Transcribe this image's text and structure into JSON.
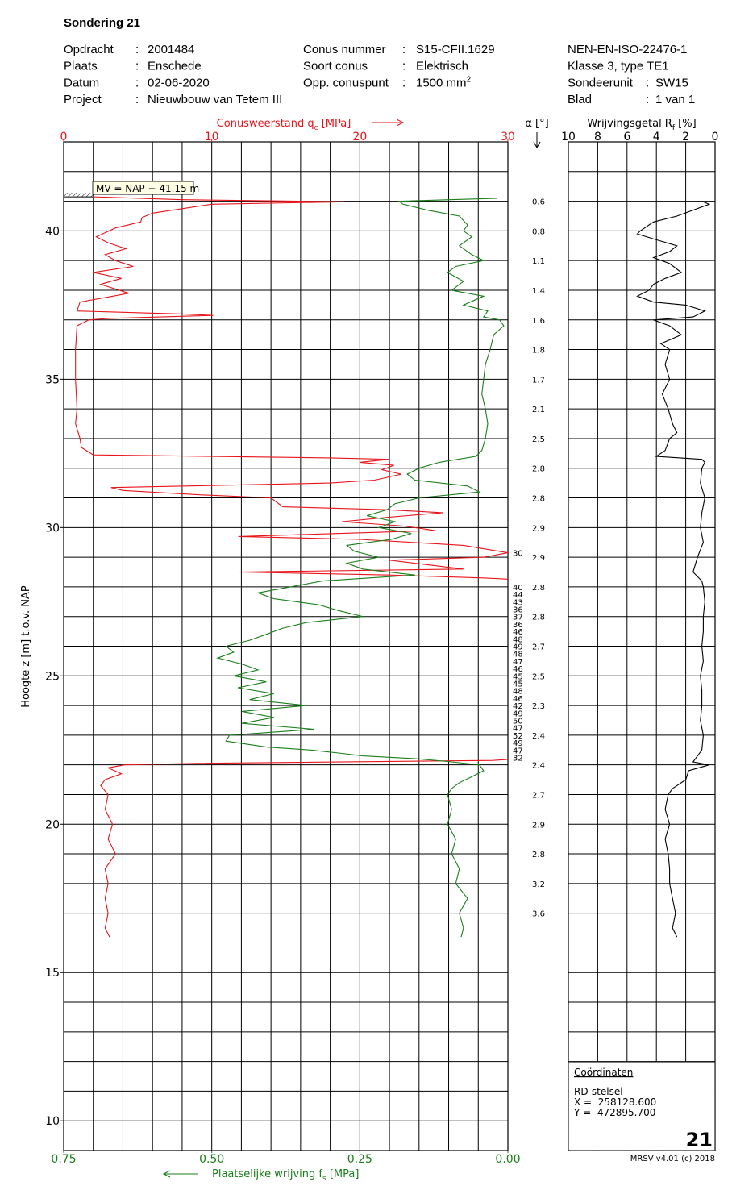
{
  "header": {
    "title": "Sondering 21",
    "separator": ":",
    "job": [
      {
        "label": "Opdracht",
        "value": "2001484"
      },
      {
        "label": "Plaats",
        "value": "Enschede"
      },
      {
        "label": "Datum",
        "value": "02-06-2020"
      },
      {
        "label": "Project",
        "value": "Nieuwbouw van Tetem III"
      }
    ],
    "cone": [
      {
        "label": "Conus nummer",
        "value": "S15-CFII.1629"
      },
      {
        "label": "Soort conus",
        "value": "Elektrisch"
      },
      {
        "label": "Opp. conuspunt",
        "value": "1500 mm",
        "sup": "2"
      }
    ],
    "standard": [
      "NEN-EN-ISO-22476-1",
      "Klasse 3, type TE1"
    ],
    "unit": [
      {
        "label": "Sondeerunit",
        "value": "SW15"
      },
      {
        "label": "Blad",
        "value": "1 van 1"
      }
    ]
  },
  "chart_data": [
    {
      "type": "line",
      "ylabel": "Hoogte z [m] t.o.v. NAP",
      "ylim": [
        9,
        43
      ],
      "yticks": [
        10,
        15,
        20,
        25,
        30,
        35,
        40
      ],
      "ygrid": [
        10,
        11,
        12,
        13,
        14,
        15,
        16,
        17,
        18,
        19,
        20,
        21,
        22,
        23,
        24,
        25,
        26,
        27,
        28,
        29,
        30,
        31,
        32,
        33,
        34,
        35,
        36,
        37,
        38,
        39,
        40,
        41,
        42
      ],
      "xlabel": {
        "text": "Conusweerstand q",
        "sub": "c",
        "unit": " [MPa]"
      },
      "xlim": [
        0,
        30
      ],
      "xticks": [
        0,
        10,
        20,
        30
      ],
      "xgrid": [
        2,
        4,
        6,
        8,
        10,
        12,
        14,
        16,
        18,
        20,
        22,
        24,
        26,
        28
      ],
      "x2label": {
        "text": "Plaatselijke wrijving f",
        "sub": "s",
        "unit": " [MPa]"
      },
      "x2lim": [
        0.75,
        0
      ],
      "x2ticks": [
        {
          "value": 0.75,
          "label": "0.75"
        },
        {
          "value": 0.5,
          "label": "0.50"
        },
        {
          "value": 0.25,
          "label": "0.25"
        },
        {
          "value": 0,
          "label": "0.00"
        }
      ],
      "surface": {
        "depth": 41.15,
        "label": "MV = NAP + 41.15 m"
      },
      "inclination": {
        "label": "α [°]",
        "depth": [
          41,
          40,
          39,
          38,
          37,
          36,
          35,
          34,
          33,
          32,
          31,
          30,
          29,
          28,
          27,
          26,
          25,
          24,
          23,
          22,
          21,
          20,
          19,
          18,
          17
        ],
        "values": [
          0.6,
          0.8,
          1.1,
          1.4,
          1.6,
          1.8,
          1.7,
          2.1,
          2.5,
          2.8,
          2.8,
          2.9,
          2.9,
          2.8,
          2.8,
          2.7,
          2.5,
          2.3,
          2.4,
          2.4,
          2.7,
          2.9,
          2.8,
          3.2,
          3.6
        ]
      },
      "series": [
        {
          "color": "#e8141b",
          "axis": "x",
          "depth": [
            41.15,
            41.05,
            40.98,
            40.9,
            40.6,
            40.45,
            40.3,
            40.1,
            39.8,
            39.6,
            39.4,
            39.2,
            39.0,
            38.8,
            38.6,
            38.4,
            38.2,
            37.9,
            37.6,
            37.3,
            37.2,
            37.15,
            37.05,
            37.0,
            36.8,
            36.0,
            35.0,
            34.0,
            33.5,
            33.0,
            32.7,
            32.45,
            32.35,
            32.3,
            32.2,
            32.1,
            31.95,
            31.8,
            31.6,
            31.5,
            31.35,
            31.25,
            31.1,
            31.0,
            30.7,
            30.6,
            30.5,
            30.35,
            30.2,
            30.05,
            29.9,
            29.7,
            29.6,
            29.4,
            29.15,
            29.0,
            28.9,
            28.75,
            28.6,
            28.5,
            28.4,
            28.3,
            28.0,
            27.75,
            27.5,
            27.25,
            27.0,
            26.75,
            26.5,
            26.25,
            26.0,
            25.75,
            25.5,
            25.25,
            25.0,
            24.75,
            24.5,
            24.25,
            24.0,
            23.75,
            23.5,
            23.25,
            23.0,
            22.75,
            22.5,
            22.25,
            22.15,
            22.05,
            22.0,
            21.9,
            21.7,
            21.5,
            21.3,
            21.0,
            20.5,
            20.0,
            19.5,
            19.0,
            18.5,
            18.0,
            17.5,
            17.0,
            16.5,
            16.2
          ],
          "values": [
            2.0,
            8.0,
            19.0,
            10.0,
            6.0,
            5.3,
            5.2,
            3.5,
            2.2,
            3.0,
            4.2,
            2.8,
            3.5,
            4.7,
            2.0,
            3.9,
            2.5,
            4.4,
            1.1,
            0.9,
            8.0,
            10.1,
            3.0,
            1.7,
            0.9,
            0.8,
            0.8,
            0.9,
            0.8,
            1.1,
            1.2,
            2.0,
            18.0,
            22.0,
            20.0,
            22.3,
            21.5,
            22.8,
            21.0,
            18.0,
            3.2,
            4.0,
            9.3,
            14.0,
            14.8,
            21.8,
            25.6,
            22.0,
            18.8,
            23.0,
            25.1,
            11.8,
            20.0,
            27.0,
            30,
            28.4,
            22.0,
            24.5,
            27.0,
            11.8,
            22.0,
            28.5,
            40,
            44,
            43,
            36,
            37,
            36,
            46,
            48,
            49,
            48,
            47,
            46,
            45,
            45,
            48,
            46,
            42,
            49,
            50,
            47,
            52,
            49,
            47,
            32,
            29.0,
            9.0,
            4.1,
            3.0,
            3.9,
            2.8,
            2.5,
            3.0,
            2.8,
            3.3,
            3.0,
            3.5,
            2.8,
            3.0,
            2.8,
            3.0,
            2.8,
            3.1
          ]
        },
        {
          "color": "#1a7f1a",
          "axis": "x2",
          "depth": [
            41.1,
            41.0,
            40.9,
            40.7,
            40.5,
            40.2,
            40.0,
            39.8,
            39.5,
            39.2,
            39.0,
            38.8,
            38.6,
            38.3,
            38.0,
            37.8,
            37.5,
            37.3,
            37.1,
            37.0,
            36.8,
            36.5,
            36.0,
            35.5,
            35.0,
            34.5,
            34.0,
            33.5,
            33.0,
            32.6,
            32.4,
            32.2,
            32.0,
            31.8,
            31.6,
            31.4,
            31.2,
            31.0,
            30.8,
            30.6,
            30.4,
            30.2,
            30.0,
            29.8,
            29.6,
            29.4,
            29.2,
            29.0,
            28.8,
            28.6,
            28.4,
            28.2,
            28.0,
            27.8,
            27.6,
            27.4,
            27.2,
            27.0,
            26.8,
            26.6,
            26.4,
            26.2,
            26.0,
            25.8,
            25.6,
            25.4,
            25.2,
            25.0,
            24.8,
            24.6,
            24.4,
            24.2,
            24.0,
            23.8,
            23.6,
            23.4,
            23.2,
            23.0,
            22.8,
            22.6,
            22.5,
            22.4,
            22.3,
            22.2,
            22.1,
            22.0,
            21.8,
            21.6,
            21.4,
            21.2,
            21.0,
            20.5,
            20.0,
            19.5,
            19.0,
            18.5,
            18.0,
            17.5,
            17.0,
            16.5,
            16.2
          ],
          "values": [
            0.018,
            0.184,
            0.177,
            0.136,
            0.082,
            0.068,
            0.075,
            0.061,
            0.082,
            0.061,
            0.041,
            0.088,
            0.102,
            0.075,
            0.095,
            0.041,
            0.075,
            0.034,
            0.041,
            0.014,
            0.007,
            0.024,
            0.03,
            0.038,
            0.041,
            0.044,
            0.038,
            0.034,
            0.038,
            0.044,
            0.054,
            0.116,
            0.15,
            0.17,
            0.157,
            0.068,
            0.048,
            0.15,
            0.191,
            0.204,
            0.238,
            0.191,
            0.218,
            0.163,
            0.197,
            0.272,
            0.259,
            0.218,
            0.272,
            0.245,
            0.157,
            0.313,
            0.367,
            0.422,
            0.395,
            0.32,
            0.286,
            0.245,
            0.34,
            0.381,
            0.408,
            0.436,
            0.476,
            0.463,
            0.49,
            0.449,
            0.422,
            0.463,
            0.408,
            0.456,
            0.395,
            0.436,
            0.34,
            0.449,
            0.395,
            0.449,
            0.327,
            0.47,
            0.476,
            0.408,
            0.333,
            0.286,
            0.245,
            0.15,
            0.095,
            0.048,
            0.041,
            0.061,
            0.082,
            0.095,
            0.102,
            0.095,
            0.102,
            0.088,
            0.095,
            0.082,
            0.088,
            0.068,
            0.082,
            0.075,
            0.079
          ]
        }
      ]
    },
    {
      "type": "line",
      "xlabel": {
        "text": "Wrijvingsgetal R",
        "sub": "f",
        "unit": " [%]"
      },
      "xlim": [
        10,
        0
      ],
      "xticks": [
        10,
        8,
        6,
        4,
        2,
        0
      ],
      "ylim": [
        9,
        43
      ],
      "ygrid": [
        10,
        11,
        12,
        13,
        14,
        15,
        16,
        17,
        18,
        19,
        20,
        21,
        22,
        23,
        24,
        25,
        26,
        27,
        28,
        29,
        30,
        31,
        32,
        33,
        34,
        35,
        36,
        37,
        38,
        39,
        40,
        41,
        42
      ],
      "series": [
        {
          "color": "#000000",
          "depth": [
            41.0,
            40.9,
            40.7,
            40.5,
            40.3,
            40.0,
            39.9,
            39.7,
            39.5,
            39.3,
            39.1,
            38.9,
            38.6,
            38.4,
            38.2,
            38.0,
            37.8,
            37.6,
            37.5,
            37.3,
            37.1,
            37.0,
            36.8,
            36.5,
            36.2,
            36.0,
            35.5,
            35.0,
            34.5,
            34.0,
            33.5,
            33.2,
            33.0,
            32.6,
            32.4,
            32.3,
            32.2,
            32.0,
            31.5,
            31.0,
            30.5,
            30.0,
            29.5,
            29.0,
            28.5,
            28.2,
            28.0,
            27.5,
            27.0,
            26.5,
            26.0,
            25.5,
            25.0,
            24.5,
            24.0,
            23.5,
            23.0,
            22.5,
            22.1,
            22.0,
            21.8,
            21.5,
            21.2,
            21.0,
            20.5,
            20.0,
            19.5,
            19.0,
            18.5,
            18.0,
            17.5,
            17.0,
            16.5,
            16.2
          ],
          "values": [
            0.9,
            0.4,
            1.5,
            2.6,
            4.2,
            5.1,
            5.3,
            4.0,
            2.6,
            3.1,
            4.2,
            3.1,
            2.3,
            3.4,
            4.2,
            4.5,
            5.3,
            4.2,
            2.0,
            0.7,
            1.5,
            4.2,
            3.1,
            2.3,
            3.7,
            3.1,
            3.4,
            3.1,
            3.6,
            3.2,
            2.9,
            2.6,
            3.1,
            3.4,
            4.0,
            0.9,
            0.7,
            0.9,
            1.0,
            0.7,
            0.9,
            1.0,
            0.8,
            1.2,
            1.5,
            0.9,
            0.8,
            0.7,
            0.8,
            0.8,
            0.9,
            0.8,
            1.0,
            0.9,
            0.9,
            1.0,
            0.8,
            0.9,
            1.5,
            0.4,
            1.8,
            2.0,
            2.9,
            3.2,
            3.4,
            3.1,
            3.4,
            3.2,
            3.1,
            3.1,
            2.9,
            2.7,
            2.9,
            2.6
          ]
        }
      ]
    }
  ],
  "footer": {
    "title": "Coördinaten",
    "system": "RD-stelsel",
    "x": "X =  258128.600",
    "y": "Y =  472895.700",
    "sheet": "21",
    "software": "MRSV v4.01 (c) 2018"
  }
}
